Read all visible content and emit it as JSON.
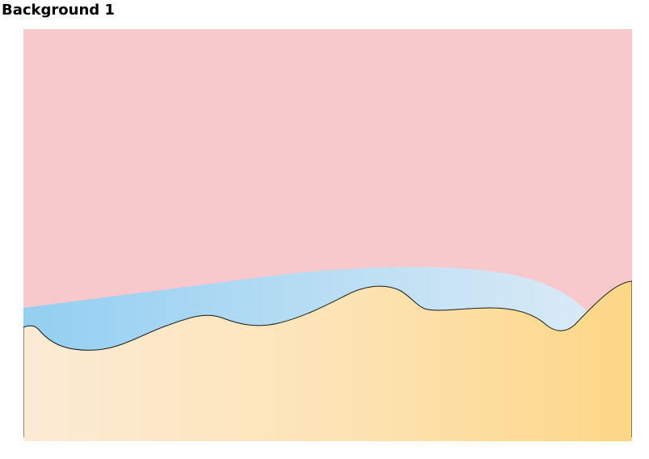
{
  "page": {
    "title": "Background 1"
  },
  "scene": {
    "colors": {
      "sky": "#f7c9cc",
      "water_left": "#93cff1",
      "water_right": "#d9eaf6",
      "sand_left": "#fcebd5",
      "sand_right": "#fdd786",
      "outline": "#1a1a1a"
    }
  }
}
